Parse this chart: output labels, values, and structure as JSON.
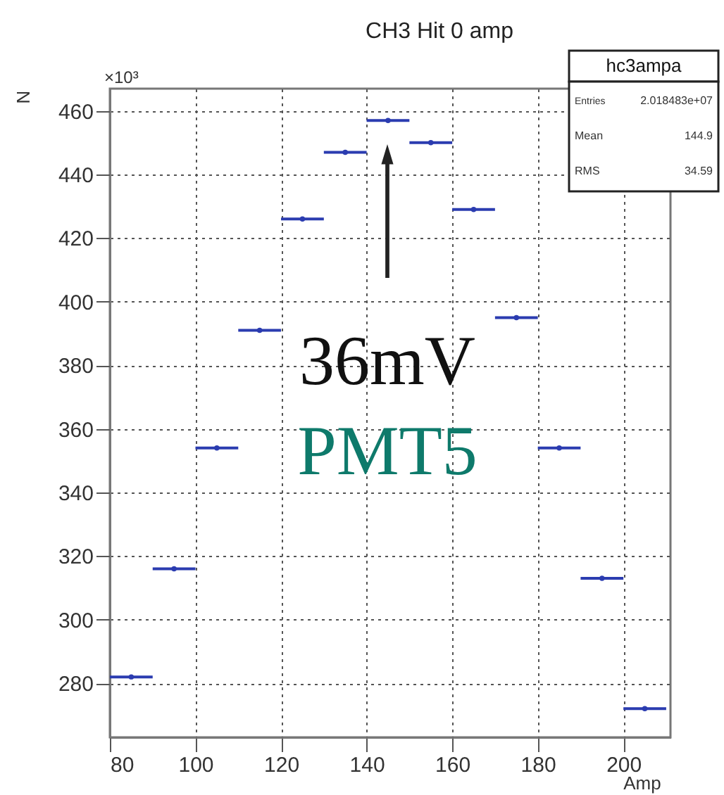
{
  "chart_data": {
    "type": "scatter",
    "title": "CH3 Hit 0 amp",
    "xlabel": "Amp",
    "ylabel": "N",
    "x": [
      85,
      95,
      105,
      115,
      125,
      135,
      145,
      155,
      165,
      175,
      185,
      195,
      205
    ],
    "xerrors": [
      5,
      5,
      5,
      5,
      5,
      5,
      5,
      5,
      5,
      5,
      5,
      5,
      5
    ],
    "marker": "circle",
    "values": [
      282,
      316,
      354,
      391,
      426,
      447,
      457,
      450,
      429,
      395,
      354,
      313,
      272
    ],
    "color": "#2b3cb0",
    "xlim": [
      80,
      211
    ],
    "xticks": [
      80,
      100,
      120,
      140,
      160,
      180,
      200
    ],
    "ylim": [
      263,
      467
    ],
    "yticks": [
      280,
      300,
      320,
      340,
      360,
      380,
      400,
      420,
      440,
      460
    ],
    "grid": true,
    "annotations": [
      "×10³",
      "36mV",
      "PMT5",
      "hc3ampa",
      "Entries 2.018483e+07",
      "Mean 144.9",
      "RMS 34.59"
    ]
  }
}
